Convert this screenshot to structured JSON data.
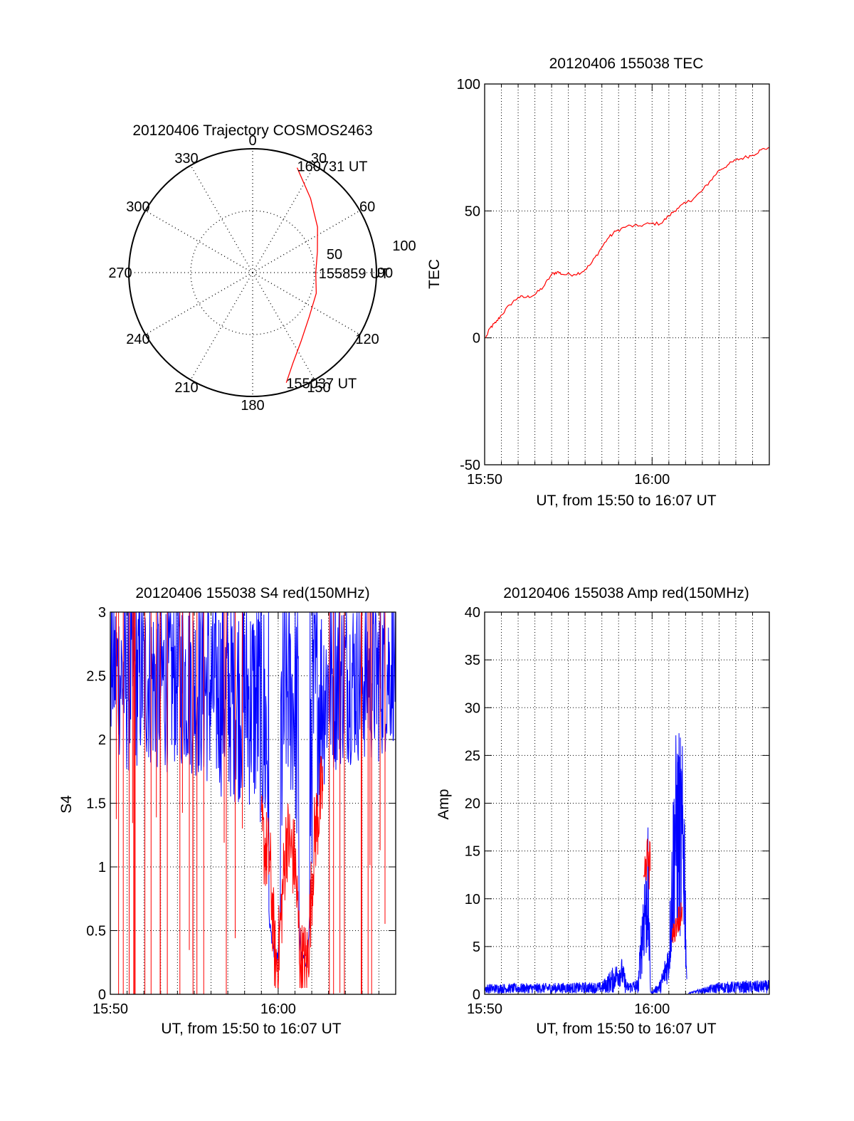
{
  "chart_data": [
    {
      "type": "polar",
      "title": "20120406 Trajectory COSMOS2463",
      "azimuth_labels": [
        "0",
        "30",
        "60",
        "90",
        "120",
        "150",
        "180",
        "210",
        "240",
        "270",
        "300",
        "330"
      ],
      "radial_labels": [
        "50",
        "100"
      ],
      "rlim": [
        0,
        100
      ],
      "grid": true,
      "trajectory_color": "#ff0000",
      "trajectory": [
        {
          "az": 163,
          "r": 93
        },
        {
          "az": 156,
          "r": 80
        },
        {
          "az": 145,
          "r": 68
        },
        {
          "az": 128,
          "r": 58
        },
        {
          "az": 108,
          "r": 54
        },
        {
          "az": 90,
          "r": 51
        },
        {
          "az": 72,
          "r": 55
        },
        {
          "az": 55,
          "r": 64
        },
        {
          "az": 38,
          "r": 76
        },
        {
          "az": 23,
          "r": 92
        }
      ],
      "annotations": [
        {
          "text": "160731 UT",
          "az": 23,
          "r": 92
        },
        {
          "text": "155859 UT",
          "az": 90,
          "r": 51
        },
        {
          "text": "155037 UT",
          "az": 163,
          "r": 93
        }
      ]
    },
    {
      "type": "line",
      "title": "20120406 155038 TEC",
      "xlabel": "UT, from 15:50 to 16:07 UT",
      "ylabel": "TEC",
      "xlim": [
        "15:50",
        "16:07"
      ],
      "ylim": [
        -50,
        100
      ],
      "x_ticks": [
        "15:50",
        "16:00"
      ],
      "y_ticks": [
        "-50",
        "0",
        "50",
        "100"
      ],
      "grid": true,
      "series": [
        {
          "color": "#ff0000",
          "points": [
            [
              "15:50:04",
              0
            ],
            [
              "15:50:20",
              4
            ],
            [
              "15:50:40",
              6
            ],
            [
              "15:51:00",
              9
            ],
            [
              "15:51:30",
              13
            ],
            [
              "15:52:00",
              16
            ],
            [
              "15:52:30",
              16
            ],
            [
              "15:53:00",
              17
            ],
            [
              "15:53:30",
              20
            ],
            [
              "15:54:00",
              25
            ],
            [
              "15:54:20",
              26
            ],
            [
              "15:54:40",
              25
            ],
            [
              "15:55:20",
              25
            ],
            [
              "15:55:50",
              26
            ],
            [
              "15:56:20",
              29
            ],
            [
              "15:56:50",
              34
            ],
            [
              "15:57:20",
              39
            ],
            [
              "15:57:50",
              42
            ],
            [
              "15:58:30",
              44
            ],
            [
              "15:59:10",
              44
            ],
            [
              "15:59:50",
              45
            ],
            [
              "16:00:30",
              45
            ],
            [
              "16:01:00",
              48
            ],
            [
              "16:01:30",
              51
            ],
            [
              "16:02:00",
              53
            ],
            [
              "16:02:30",
              55
            ],
            [
              "16:03:00",
              58
            ],
            [
              "16:03:30",
              62
            ],
            [
              "16:04:00",
              66
            ],
            [
              "16:04:30",
              68
            ],
            [
              "16:05:00",
              70
            ],
            [
              "16:05:30",
              71
            ],
            [
              "16:06:00",
              72
            ],
            [
              "16:06:30",
              74
            ],
            [
              "16:07:00",
              75
            ]
          ]
        }
      ]
    },
    {
      "type": "line",
      "title": "20120406 155038 S4 red(150MHz)",
      "xlabel": "UT, from 15:50 to 16:07 UT",
      "ylabel": "S4",
      "xlim": [
        "15:50",
        "16:07"
      ],
      "ylim": [
        0,
        3
      ],
      "x_ticks": [
        "15:50",
        "16:00"
      ],
      "y_ticks": [
        "0",
        "0.5",
        "1",
        "1.5",
        "2",
        "2.5",
        "3"
      ],
      "grid": true,
      "series": [
        {
          "color": "#0000ff",
          "envelope": [
            [
              "15:50:00",
              2.0
            ],
            [
              "15:51:00",
              1.7
            ],
            [
              "15:52:00",
              1.8
            ],
            [
              "15:53:00",
              1.7
            ],
            [
              "15:54:00",
              1.8
            ],
            [
              "15:55:00",
              1.7
            ],
            [
              "15:56:00",
              1.6
            ],
            [
              "15:57:00",
              1.5
            ],
            [
              "15:58:00",
              1.5
            ],
            [
              "15:59:00",
              1.3
            ],
            [
              "15:59:30",
              0.5
            ],
            [
              "15:59:50",
              0.2
            ],
            [
              "16:00:00",
              0.25
            ],
            [
              "16:00:30",
              1.6
            ],
            [
              "16:01:00",
              1.4
            ],
            [
              "16:01:20",
              0.25
            ],
            [
              "16:01:45",
              0.2
            ],
            [
              "16:02:10",
              1.4
            ],
            [
              "16:03:00",
              1.7
            ],
            [
              "16:04:00",
              1.8
            ],
            [
              "16:05:00",
              1.8
            ],
            [
              "16:06:00",
              1.8
            ],
            [
              "16:07:00",
              2.0
            ]
          ]
        },
        {
          "color": "#ff0000",
          "envelope": [
            [
              "15:59:00",
              1.1
            ],
            [
              "15:59:30",
              0.9
            ],
            [
              "15:59:50",
              0.1
            ],
            [
              "16:00:00",
              0.15
            ],
            [
              "16:00:30",
              1.1
            ],
            [
              "16:01:00",
              0.9
            ],
            [
              "16:01:20",
              0.1
            ],
            [
              "16:01:45",
              0.1
            ],
            [
              "16:02:10",
              1.1
            ],
            [
              "16:02:40",
              1.5
            ]
          ]
        }
      ]
    },
    {
      "type": "line",
      "title": "20120406 155038 Amp red(150MHz)",
      "xlabel": "UT, from 15:50 to 16:07 UT",
      "ylabel": "Amp",
      "xlim": [
        "15:50",
        "16:07"
      ],
      "ylim": [
        0,
        40
      ],
      "x_ticks": [
        "15:50",
        "16:00"
      ],
      "y_ticks": [
        "0",
        "5",
        "10",
        "15",
        "20",
        "25",
        "30",
        "35",
        "40"
      ],
      "grid": true,
      "series": [
        {
          "color": "#0000ff",
          "envelope": [
            [
              "15:50:00",
              1.0
            ],
            [
              "15:54:00",
              1.1
            ],
            [
              "15:57:00",
              1.2
            ],
            [
              "15:58:10",
              4.0
            ],
            [
              "15:58:30",
              1.2
            ],
            [
              "15:59:10",
              1.5
            ],
            [
              "15:59:30",
              14.0
            ],
            [
              "15:59:45",
              18.0
            ],
            [
              "15:59:55",
              0.0
            ],
            [
              "16:00:30",
              1.5
            ],
            [
              "16:01:00",
              6.0
            ],
            [
              "16:01:20",
              27.0
            ],
            [
              "16:01:35",
              28.5
            ],
            [
              "16:01:55",
              25.0
            ],
            [
              "16:02:05",
              0.0
            ],
            [
              "16:04:00",
              1.2
            ],
            [
              "16:07:00",
              1.4
            ]
          ]
        },
        {
          "color": "#ff0000",
          "envelope": [
            [
              "15:59:30",
              12.0
            ],
            [
              "15:59:45",
              16.0
            ],
            [
              "16:01:10",
              6.0
            ],
            [
              "16:01:30",
              8.5
            ],
            [
              "16:01:50",
              9.0
            ]
          ]
        }
      ]
    }
  ]
}
